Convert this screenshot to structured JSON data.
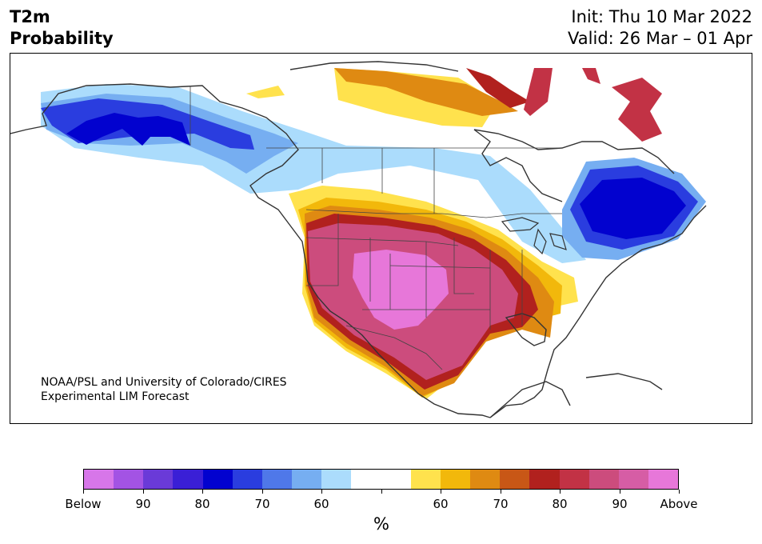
{
  "header": {
    "title_line1": "T2m",
    "title_line2": "Probability",
    "init": "Init: Thu 10 Mar 2022",
    "valid": "Valid: 26 Mar – 01 Apr"
  },
  "credit": {
    "line1": "NOAA/PSL and University of Colorado/CIRES",
    "line2": "Experimental LIM Forecast"
  },
  "colorbar": {
    "colors": [
      "#d776e9",
      "#a353e4",
      "#6a3ad8",
      "#3a1fd6",
      "#0202cf",
      "#2a3ddf",
      "#4f78e9",
      "#76aef1",
      "#abdcfc",
      "#ffffff",
      "#ffffff",
      "#ffe24d",
      "#f2b80b",
      "#df8a12",
      "#c85716",
      "#b1211e",
      "#c23245",
      "#cc4c7d",
      "#d65da5",
      "#e777d9"
    ],
    "tick_labels": [
      "Below",
      "90",
      "80",
      "70",
      "60",
      "",
      "60",
      "70",
      "80",
      "90",
      "Above"
    ],
    "unit": "%"
  },
  "map": {
    "region": "North America",
    "colors": {
      "below_strong": "#0202cf",
      "below_mid": "#2a3ddf",
      "below_weak": "#76aef1",
      "below_faint": "#abdcfc",
      "above_faint": "#ffe24d",
      "above_weak": "#f2b80b",
      "above_mid": "#df8a12",
      "above_red": "#b1211e",
      "above_pink": "#cc4c7d",
      "above_strong": "#e777d9",
      "coast": "#333333"
    }
  }
}
